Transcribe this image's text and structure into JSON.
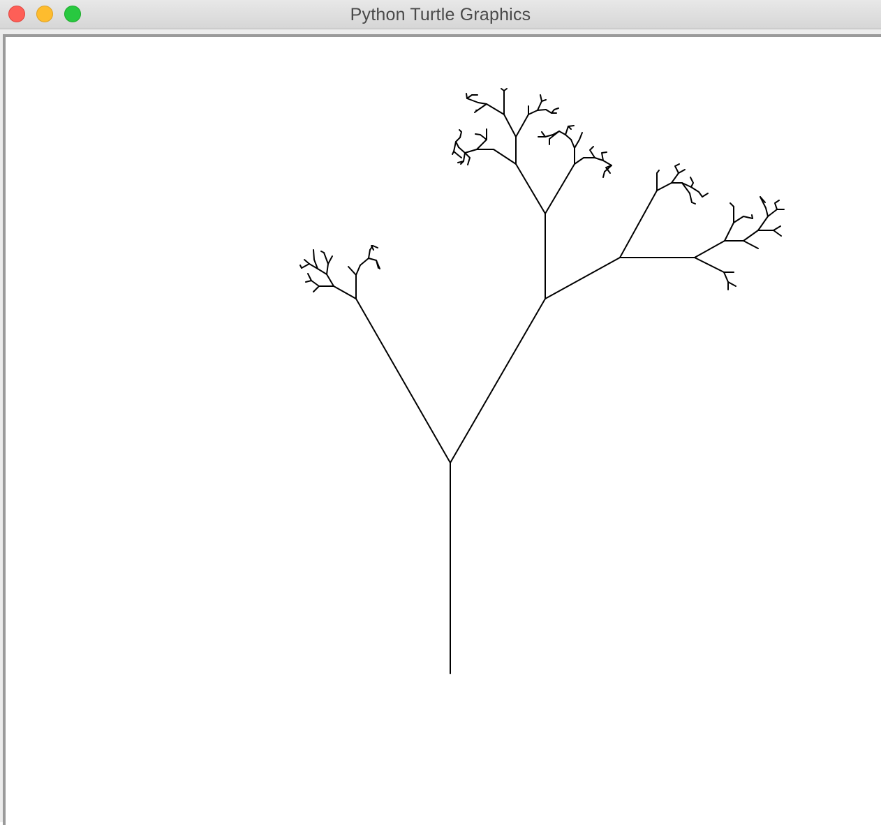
{
  "window": {
    "title": "Python Turtle Graphics",
    "buttons": {
      "close": "close-button",
      "minimize": "minimize-button",
      "zoom": "zoom-button"
    },
    "colors": {
      "close": "#fe5f57",
      "minimize": "#febc2e",
      "zoom": "#28c840"
    }
  },
  "canvas": {
    "background": "#ffffff",
    "pen_color": "#000000",
    "drawing": "recursive fractal tree"
  }
}
